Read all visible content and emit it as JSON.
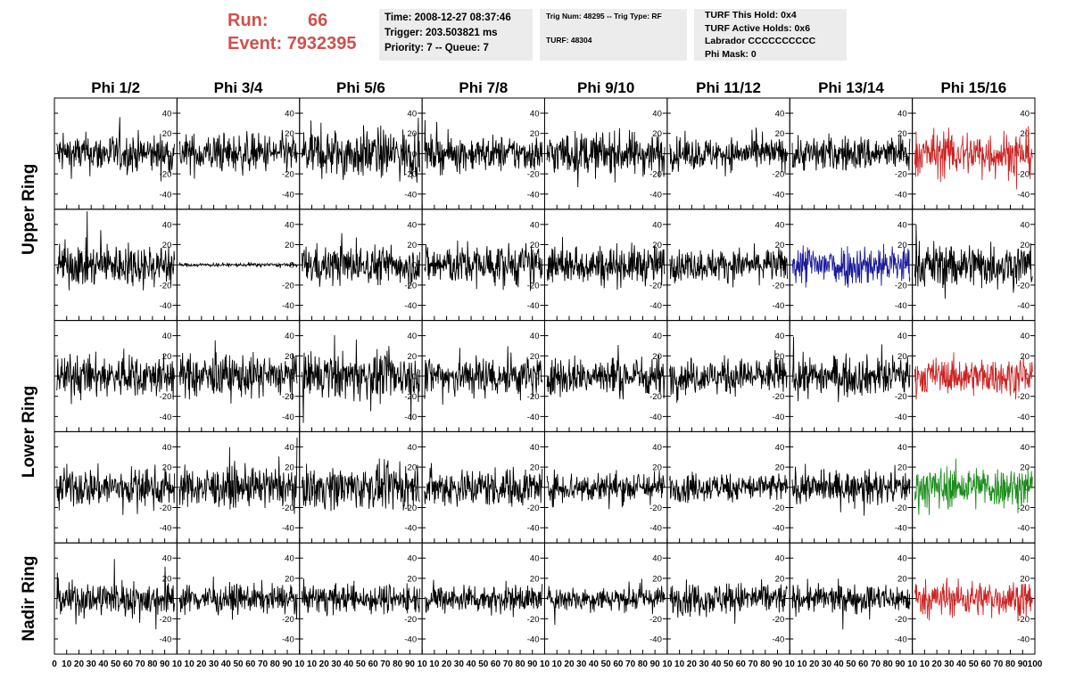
{
  "header": {
    "run_label": "Run:",
    "run_value": "66",
    "event_label": "Event:",
    "event_value": "7932395"
  },
  "info_time": {
    "time": "Time: 2008-12-27 08:37:46",
    "trigger": "Trigger: 203.503821 ms",
    "priority": "Priority: 7 -- Queue: 7"
  },
  "info_trig": {
    "trig": "Trig Num: 48295 -- Trig Type: RF",
    "turf": "TURF: 48304"
  },
  "info_turf": {
    "this_hold": "TURF This Hold: 0x4",
    "active_holds": "TURF Active Holds: 0x6",
    "labrador": "Labrador CCCCCCCCCC",
    "phi_mask": "Phi Mask: 0"
  },
  "chart_data": {
    "type": "line",
    "columns": [
      "Phi 1/2",
      "Phi 3/4",
      "Phi 5/6",
      "Phi 7/8",
      "Phi 9/10",
      "Phi 11/12",
      "Phi 13/14",
      "Phi 15/16"
    ],
    "rows": [
      "Upper Ring",
      "Upper Ring",
      "Lower Ring",
      "Lower Ring",
      "Nadir Ring"
    ],
    "row_labels": [
      {
        "label": "Upper Ring",
        "spans_rows": [
          0,
          1
        ]
      },
      {
        "label": "Lower Ring",
        "spans_rows": [
          2,
          3
        ]
      },
      {
        "label": "Nadir Ring",
        "spans_rows": [
          4
        ]
      }
    ],
    "xlim": [
      0,
      100
    ],
    "ylim": [
      -55,
      55
    ],
    "xticks": [
      0,
      10,
      20,
      30,
      40,
      50,
      60,
      70,
      80,
      90,
      100
    ],
    "yticks": [
      -40,
      -20,
      0,
      20,
      40
    ],
    "xtick_labels_last_column": [
      "10",
      "20",
      "30",
      "40",
      "50",
      "60",
      "70",
      "80",
      "90",
      "100"
    ],
    "xtick_labels_other_columns": [
      "10",
      "20",
      "30",
      "40",
      "50",
      "60",
      "70",
      "80",
      "90",
      "10"
    ],
    "first_column_extra_xtick": "0",
    "colors": {
      "default": "#000000",
      "red": "#cc2222",
      "blue": "#1a1a9a",
      "green": "#1a8c1a",
      "frame": "#000000"
    },
    "highlighted_panels": [
      {
        "row": 0,
        "col": 7,
        "color": "red"
      },
      {
        "row": 1,
        "col": 6,
        "color": "blue"
      },
      {
        "row": 2,
        "col": 7,
        "color": "red"
      },
      {
        "row": 3,
        "col": 7,
        "color": "green"
      },
      {
        "row": 4,
        "col": 7,
        "color": "red"
      }
    ],
    "amplitude_estimates": [
      [
        22,
        22,
        28,
        20,
        24,
        18,
        20,
        26
      ],
      [
        24,
        2,
        22,
        24,
        22,
        18,
        24,
        26
      ],
      [
        24,
        24,
        26,
        24,
        22,
        20,
        22,
        20
      ],
      [
        22,
        22,
        24,
        22,
        18,
        16,
        18,
        24
      ],
      [
        20,
        16,
        16,
        16,
        14,
        18,
        16,
        20
      ]
    ]
  }
}
